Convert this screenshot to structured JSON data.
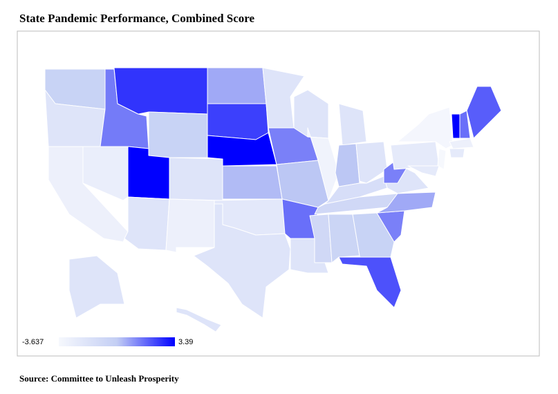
{
  "chart_data": {
    "type": "choropleth",
    "title": "State Pandemic Performance, Combined Score",
    "source": "Source: Committee to Unleash Prosperity",
    "values": [
      -0.5,
      -2,
      -3,
      -2.8,
      1.3,
      2.5,
      -0.5,
      3.39,
      -2,
      -2,
      -3,
      0.5,
      2.3,
      3.39,
      0.2,
      -2.3,
      -2,
      -2,
      1.2,
      0,
      1.5,
      -2,
      -2,
      -3.2,
      -2,
      0,
      -2,
      -1.5,
      -1,
      -1,
      -0.7,
      -0.5,
      2,
      1.2,
      0.5,
      -2,
      1.2,
      -2.5,
      -3.5,
      -3.637,
      -2.5,
      -3,
      -2.5,
      3.39,
      1.5,
      1.8,
      -2,
      -2
    ],
    "legend": {
      "min": -3.637,
      "max": 3.39,
      "colors": [
        "#f6f8fd",
        "#c3cef4",
        "#0000ff"
      ]
    }
  }
}
